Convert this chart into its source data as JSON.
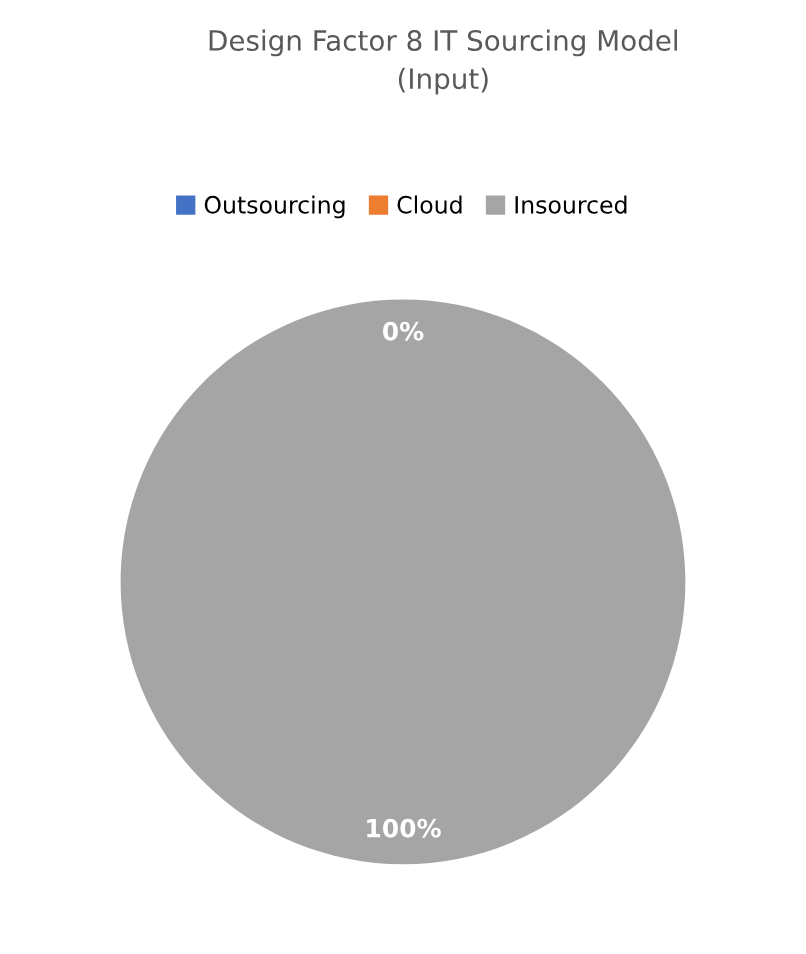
{
  "chart_data": {
    "type": "pie",
    "title": "Design Factor 8 IT Sourcing Model",
    "subtitle": "(Input)",
    "categories": [
      "Outsourcing",
      "Cloud",
      "Insourced"
    ],
    "values": [
      0,
      0,
      100
    ],
    "colors": [
      "#4472c4",
      "#ed7d31",
      "#a5a5a5"
    ],
    "value_labels": [
      "0%",
      null,
      "100%"
    ],
    "legend": "top"
  }
}
